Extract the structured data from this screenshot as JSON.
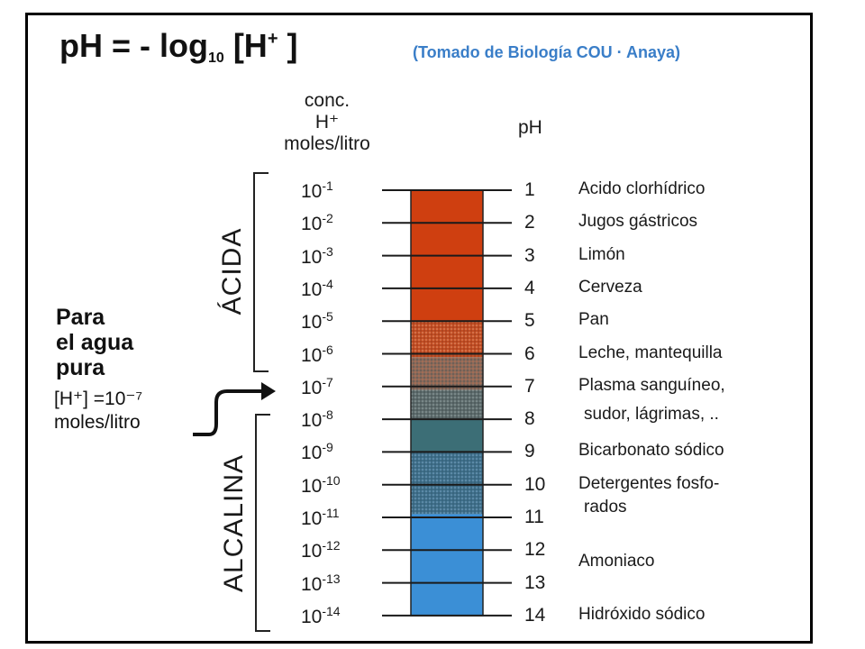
{
  "formula": {
    "text": "pH = - log",
    "subscript": "10",
    "bracket": "[H",
    "superscript": "+",
    "close": " ]"
  },
  "credit": "(Tomado de Biología COU · Anaya)",
  "column_concentration": [
    "conc.",
    "H⁺",
    "moles/litro"
  ],
  "column_ph": "pH",
  "acid_label": "ÁCIDA",
  "alkaline_label": "ALCALINA",
  "pure_water": {
    "lines": [
      "Para",
      "el agua",
      "pura"
    ],
    "conc_line": "[H⁺] =10⁻⁷",
    "unit": "moles/litro"
  },
  "colors": {
    "acid": "#cf3f10",
    "weak_acid": "#c24e25",
    "neutral": "#8a6a5a",
    "weak_base": "#3c6e76",
    "base": "#2f7fbe",
    "strong_base": "#3b8fd6"
  },
  "scale": [
    {
      "ph": "1",
      "exp": "-1",
      "example": "Acido clorhídrico"
    },
    {
      "ph": "2",
      "exp": "-2",
      "example": "Jugos gástricos"
    },
    {
      "ph": "3",
      "exp": "-3",
      "example": "Limón"
    },
    {
      "ph": "4",
      "exp": "-4",
      "example": "Cerveza"
    },
    {
      "ph": "5",
      "exp": "-5",
      "example": "Pan"
    },
    {
      "ph": "6",
      "exp": "-6",
      "example": "Leche, mantequilla"
    },
    {
      "ph": "7",
      "exp": "-7",
      "example": "Plasma sanguíneo,"
    },
    {
      "ph": "8",
      "exp": "-8",
      "example": "sudor, lágrimas, .."
    },
    {
      "ph": "9",
      "exp": "-9",
      "example": "Bicarbonato sódico"
    },
    {
      "ph": "10",
      "exp": "-10",
      "example": "Detergentes fosfo-"
    },
    {
      "ph": "11",
      "exp": "-11",
      "example": "rados"
    },
    {
      "ph": "12",
      "exp": "-12",
      "example": "Amoniaco"
    },
    {
      "ph": "13",
      "exp": "-13",
      "example": ""
    },
    {
      "ph": "14",
      "exp": "-14",
      "example": "Hidróxido sódico"
    }
  ]
}
